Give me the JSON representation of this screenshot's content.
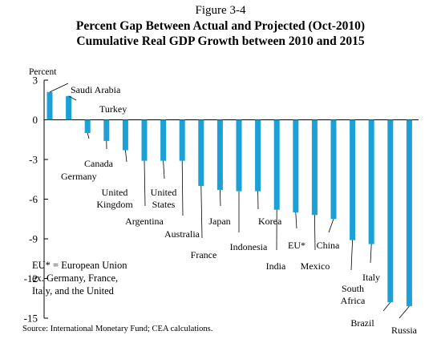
{
  "figure": {
    "label": "Figure 3-4",
    "title_line1": "Percent Gap Between Actual and Projected (Oct-2010)",
    "title_line2": "Cumulative Real GDP Growth between 2010 and 2015",
    "note": "EU* = European Union\nex. Germany, France,\nItaly, and the United",
    "source": "Source: International Monetary Fund; CEA calculations."
  },
  "colors": {
    "bar": "#1ba1d8",
    "axis": "#000000",
    "leader": "#000000"
  },
  "chart_data": {
    "type": "bar",
    "ylabel": "Percent",
    "ylim": [
      -15,
      3
    ],
    "yticks": [
      3,
      0,
      -3,
      -6,
      -9,
      -12,
      -15
    ],
    "grid": false,
    "categories": [
      "Saudi Arabia",
      "Turkey",
      "Germany",
      "Canada",
      "United Kingdom",
      "Argentina",
      "United States",
      "Australia",
      "France",
      "Japan",
      "Indonesia",
      "Korea",
      "India",
      "EU*",
      "Mexico",
      "China",
      "South Africa",
      "Italy",
      "Brazil",
      "Russia"
    ],
    "values": [
      2.1,
      1.8,
      -1.0,
      -1.6,
      -2.3,
      -3.1,
      -3.1,
      -3.1,
      -5.0,
      -5.3,
      -5.4,
      -5.4,
      -6.8,
      -7.0,
      -7.2,
      -7.5,
      -9.1,
      -9.4,
      -13.8,
      -14.1
    ],
    "labels_display": [
      "Saudi Arabia",
      "Turkey",
      "Germany",
      "Canada",
      "United\nKingdom",
      "Argentina",
      "United\nStates",
      "Australia",
      "France",
      "Japan",
      "Indonesia",
      "Korea",
      "India",
      "EU*",
      "Mexico",
      "China",
      "South\nAfrica",
      "Italy",
      "Brazil",
      "Russia"
    ]
  }
}
